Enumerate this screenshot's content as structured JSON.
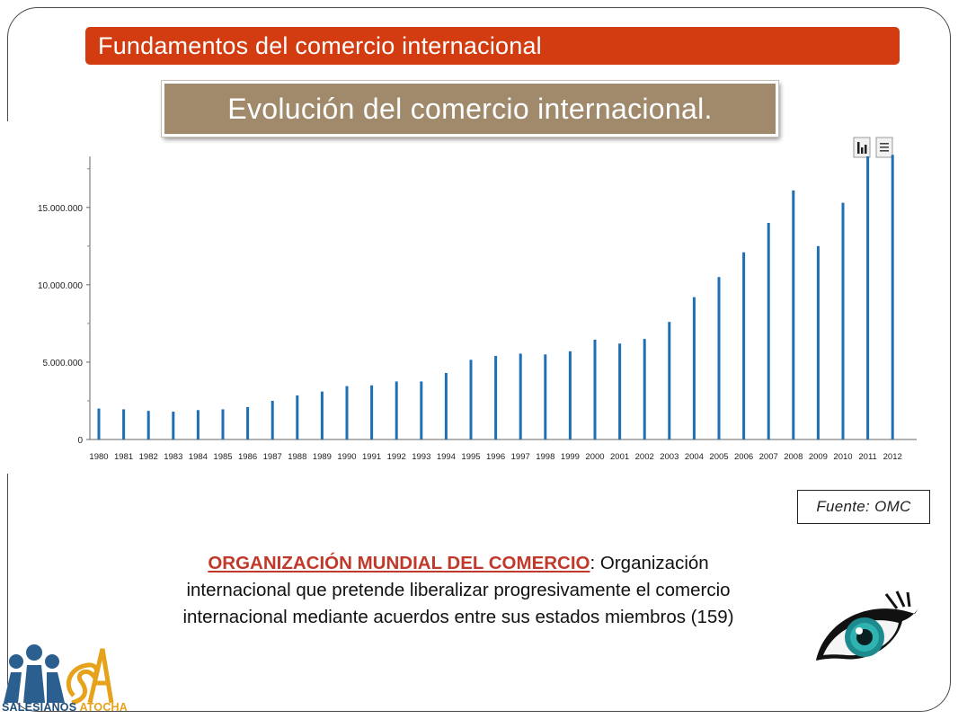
{
  "header": {
    "title": "Fundamentos del comercio internacional"
  },
  "subtitle": "Evolución del comercio internacional.",
  "toolbar": {
    "icons": [
      "bar-chart-icon",
      "menu-list-icon"
    ]
  },
  "source": "Fuente: OMC",
  "description": {
    "heading": "ORGANIZACIÓN MUNDIAL DEL COMERCIO",
    "line1_rest": ": Organización",
    "line2": "internacional que pretende liberalizar progresivamente el comercio",
    "line3": "internacional mediante acuerdos entre sus estados miembros (159)"
  },
  "logo": {
    "part1": "SALESIANOS",
    "part2": "ATOCHA"
  },
  "colors": {
    "header": "#d33c10",
    "subtitle_bg": "#a08a6b",
    "bar": "#1f6fb5",
    "heading": "#c0392b"
  },
  "chart_data": {
    "type": "bar",
    "categories": [
      "1980",
      "1981",
      "1982",
      "1983",
      "1984",
      "1985",
      "1986",
      "1987",
      "1988",
      "1989",
      "1990",
      "1991",
      "1992",
      "1993",
      "1994",
      "1995",
      "1996",
      "1997",
      "1998",
      "1999",
      "2000",
      "2001",
      "2002",
      "2003",
      "2004",
      "2005",
      "2006",
      "2007",
      "2008",
      "2009",
      "2010",
      "2011",
      "2012"
    ],
    "values": [
      2000000,
      1950000,
      1850000,
      1800000,
      1900000,
      1950000,
      2100000,
      2500000,
      2850000,
      3100000,
      3450000,
      3500000,
      3750000,
      3750000,
      4300000,
      5150000,
      5400000,
      5550000,
      5500000,
      5700000,
      6450000,
      6200000,
      6500000,
      7600000,
      9200000,
      10500000,
      12100000,
      14000000,
      16100000,
      12500000,
      15300000,
      18300000,
      18400000
    ],
    "ylim": [
      0,
      18300000
    ],
    "yticks": [
      0,
      5000000,
      10000000,
      15000000
    ],
    "ytick_labels": [
      "0",
      "5.000.000",
      "10.000.000",
      "15.000.000"
    ],
    "title": "",
    "xlabel": "",
    "ylabel": "",
    "grid": false
  }
}
